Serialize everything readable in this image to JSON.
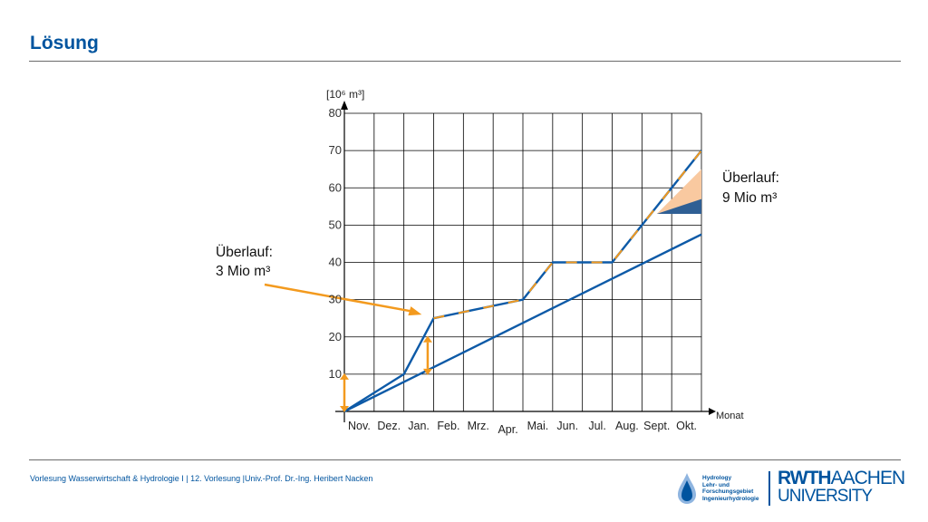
{
  "slide": {
    "title": "Lösung",
    "footer": "Vorlesung Wasserwirtschaft & Hydrologie I | 12. Vorlesung |Univ.-Prof. Dr.-Ing. Heribert Nacken"
  },
  "logos": {
    "hydro_lines": [
      "Hydrology",
      "Lehr- und",
      "Forschungsgebiet",
      "Ingenieurhydrologie"
    ],
    "rwth_line1_a": "RWTH",
    "rwth_line1_b": "AACHEN",
    "rwth_line2": "UNIVERSITY"
  },
  "colors": {
    "title": "#00549f",
    "series_blue": "#0d5aa7",
    "series_orange": "#f39a1e",
    "overflow_light": "#f9c9a0",
    "overflow_dark": "#2f5f94",
    "grid": "#000000"
  },
  "chart_data": {
    "type": "line",
    "y_unit": "[10⁶ m³]",
    "xlabel": "Monat",
    "categories": [
      "Nov.",
      "Dez.",
      "Jan.",
      "Feb.",
      "Mrz.",
      "Apr.",
      "Mai.",
      "Jun.",
      "Jul.",
      "Aug.",
      "Sept.",
      "Okt."
    ],
    "ylim": [
      0,
      80
    ],
    "yticks": [
      10,
      20,
      30,
      40,
      50,
      60,
      70,
      80
    ],
    "grid": true,
    "series": [
      {
        "color_key": "series_blue",
        "points": [
          [
            0,
            0
          ],
          [
            12,
            47.5
          ]
        ]
      },
      {
        "color_key": "series_blue",
        "points": [
          [
            0,
            0
          ],
          [
            2,
            10
          ],
          [
            3,
            25
          ],
          [
            6,
            30
          ],
          [
            7,
            40
          ],
          [
            9,
            40
          ],
          [
            12,
            70
          ]
        ]
      },
      {
        "color_key": "series_orange",
        "dashed": true,
        "points": [
          [
            3,
            25
          ],
          [
            6,
            30
          ],
          [
            7,
            40
          ],
          [
            9,
            40
          ],
          [
            12,
            70
          ]
        ]
      }
    ],
    "arrows": [
      {
        "x": 0,
        "y_from": 0,
        "y_to": 10
      },
      {
        "x": 2.8,
        "y_from": 10,
        "y_to": 20
      }
    ],
    "annotations": [
      {
        "line1": "Überlauf:",
        "line2": "3 Mio m³",
        "target": [
          2.6,
          26
        ]
      },
      {
        "line1": "Überlauf:",
        "line2": "9 Mio m³"
      }
    ],
    "overflow_wedge": {
      "x_from": 10.5,
      "x_to": 12,
      "light_top": [
        12,
        65
      ],
      "dark_top": [
        12,
        57
      ],
      "base": 53
    }
  }
}
